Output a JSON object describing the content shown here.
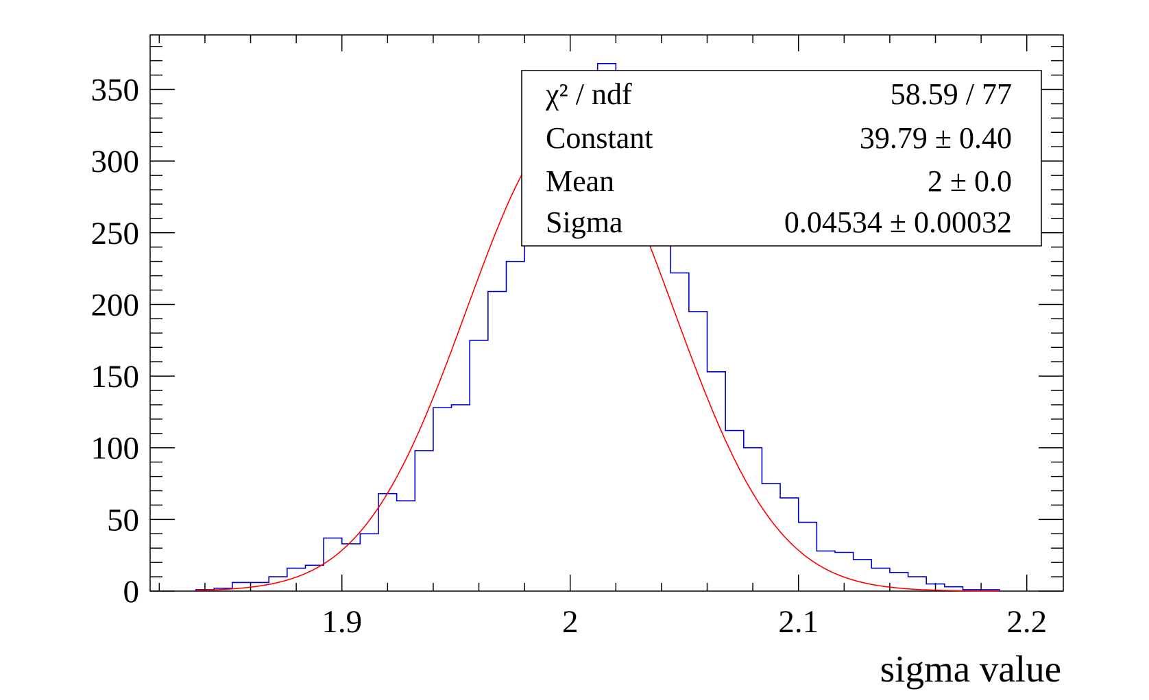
{
  "chart_data": {
    "type": "bar",
    "title": "",
    "xlabel": "sigma value",
    "ylabel": "",
    "xlim": [
      1.816,
      2.216
    ],
    "ylim": [
      0,
      388
    ],
    "grid": false,
    "bin_width": 0.008,
    "x_ticks": [
      {
        "value": 1.9,
        "label": "1.9"
      },
      {
        "value": 2.0,
        "label": "2"
      },
      {
        "value": 2.1,
        "label": "2.1"
      },
      {
        "value": 2.2,
        "label": "2.2"
      }
    ],
    "y_ticks": [
      {
        "value": 0,
        "label": "0"
      },
      {
        "value": 50,
        "label": "50"
      },
      {
        "value": 100,
        "label": "100"
      },
      {
        "value": 150,
        "label": "150"
      },
      {
        "value": 200,
        "label": "200"
      },
      {
        "value": 250,
        "label": "250"
      },
      {
        "value": 300,
        "label": "300"
      },
      {
        "value": 350,
        "label": "350"
      }
    ],
    "histogram": {
      "color": "#0000cc",
      "bin_centers": [
        1.84,
        1.848,
        1.856,
        1.864,
        1.872,
        1.88,
        1.888,
        1.896,
        1.904,
        1.912,
        1.92,
        1.928,
        1.936,
        1.944,
        1.952,
        1.96,
        1.968,
        1.976,
        1.984,
        1.992,
        2.0,
        2.008,
        2.016,
        2.024,
        2.032,
        2.04,
        2.048,
        2.056,
        2.064,
        2.072,
        2.08,
        2.088,
        2.096,
        2.104,
        2.112,
        2.12,
        2.128,
        2.136,
        2.144,
        2.152,
        2.16,
        2.168,
        2.176,
        2.184
      ],
      "counts": [
        1,
        2,
        6,
        6,
        10,
        16,
        18,
        37,
        33,
        40,
        68,
        63,
        98,
        128,
        130,
        175,
        209,
        230,
        260,
        280,
        300,
        320,
        368,
        355,
        300,
        270,
        222,
        195,
        153,
        112,
        100,
        75,
        65,
        48,
        28,
        27,
        22,
        16,
        13,
        10,
        5,
        3,
        1,
        1
      ]
    },
    "fit": {
      "color": "#ff0000",
      "function": "gaus",
      "constant": 39.79,
      "mean": 2.0,
      "sigma": 0.04534
    },
    "stats_box": {
      "position": "top-right",
      "rows": [
        {
          "label": "χ² / ndf",
          "value": "58.59 / 77"
        },
        {
          "label": "Constant",
          "value": "39.79 ± 0.40"
        },
        {
          "label": "Mean",
          "value": "2 ± 0.0"
        },
        {
          "label": "Sigma",
          "value": "0.04534 ± 0.00032"
        }
      ]
    }
  }
}
